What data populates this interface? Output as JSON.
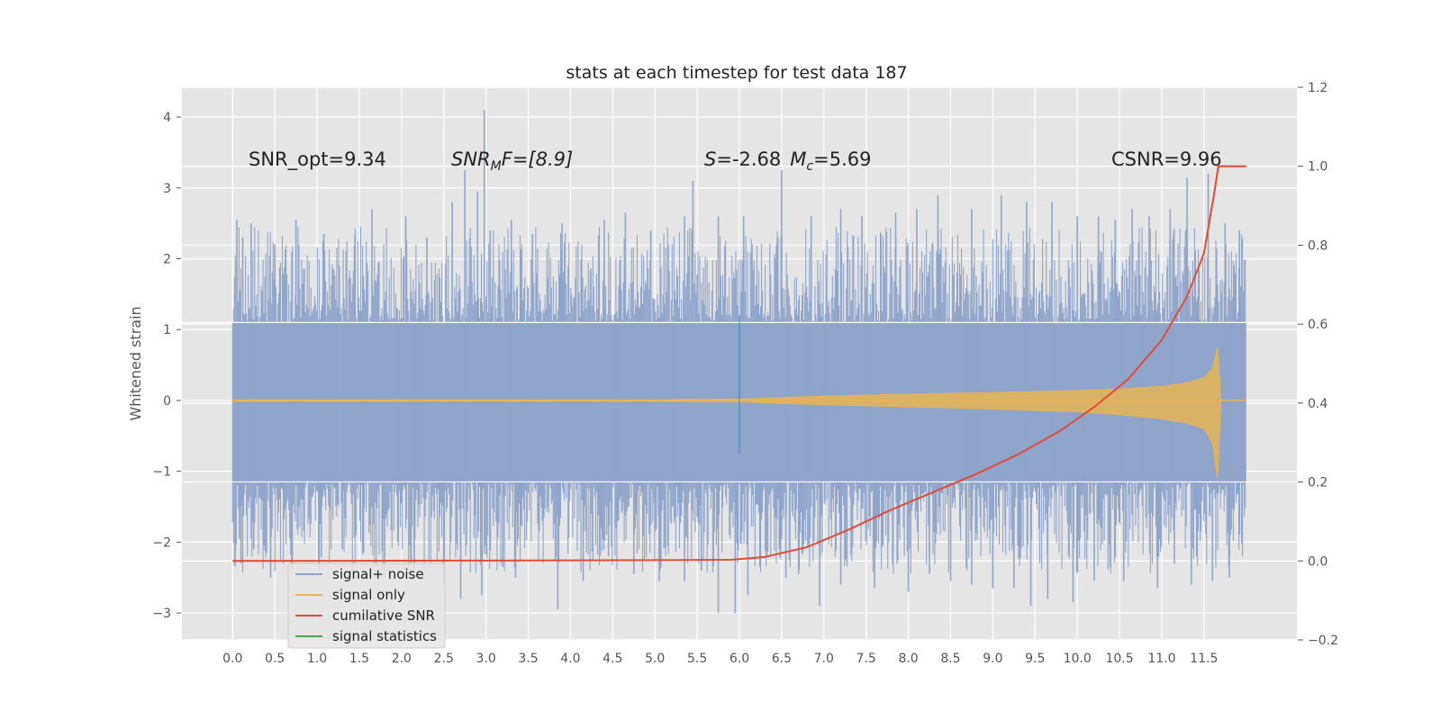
{
  "chart_data": {
    "type": "line",
    "title": "stats at each timestep for test data 187",
    "xlabel": "",
    "ylabel": "Whitened strain",
    "xlim": [
      -0.6,
      12.6
    ],
    "ylim": [
      -3.38,
      4.42
    ],
    "y2lim": [
      -0.2,
      1.2
    ],
    "grid": true,
    "x_ticks": [
      "0.0",
      "0.5",
      "1.0",
      "1.5",
      "2.0",
      "2.5",
      "3.0",
      "3.5",
      "4.0",
      "4.5",
      "5.0",
      "5.5",
      "6.0",
      "6.5",
      "7.0",
      "7.5",
      "8.0",
      "8.5",
      "9.0",
      "9.5",
      "10.0",
      "10.5",
      "11.0",
      "11.5"
    ],
    "y_ticks": [
      {
        "value": 4,
        "label": "4"
      },
      {
        "value": 3,
        "label": "3"
      },
      {
        "value": 2,
        "label": "2"
      },
      {
        "value": 1,
        "label": "1"
      },
      {
        "value": 0,
        "label": "0"
      },
      {
        "value": -1,
        "label": "−1"
      },
      {
        "value": -2,
        "label": "−2"
      },
      {
        "value": -3,
        "label": "−3"
      }
    ],
    "y2_ticks": [
      {
        "value": 1.2,
        "label": "1.2"
      },
      {
        "value": 1.0,
        "label": "1.0"
      },
      {
        "value": 0.8,
        "label": "0.8"
      },
      {
        "value": 0.6,
        "label": "0.6"
      },
      {
        "value": 0.4,
        "label": "0.4"
      },
      {
        "value": 0.2,
        "label": "0.2"
      },
      {
        "value": 0.0,
        "label": "0.0"
      },
      {
        "value": -0.2,
        "label": "−0.2"
      }
    ],
    "series": [
      {
        "name": "signal+ noise",
        "color": "#8fa5cb",
        "axis": "left",
        "x_range": [
          0,
          12
        ],
        "noise_band": [
          -1.15,
          1.1
        ],
        "spikes_up": [
          [
            0.05,
            2.55
          ],
          [
            0.12,
            2.3
          ],
          [
            0.22,
            2.5
          ],
          [
            0.5,
            2.2
          ],
          [
            0.75,
            2.55
          ],
          [
            1.08,
            2.35
          ],
          [
            1.45,
            2.35
          ],
          [
            1.65,
            2.7
          ],
          [
            2.05,
            2.6
          ],
          [
            2.3,
            2.3
          ],
          [
            2.6,
            2.8
          ],
          [
            2.75,
            3.25
          ],
          [
            2.9,
            2.95
          ],
          [
            2.98,
            4.1
          ],
          [
            3.05,
            2.4
          ],
          [
            3.3,
            2.55
          ],
          [
            3.55,
            2.35
          ],
          [
            3.9,
            2.5
          ],
          [
            4.4,
            2.55
          ],
          [
            4.65,
            2.65
          ],
          [
            4.95,
            2.4
          ],
          [
            5.35,
            2.6
          ],
          [
            5.45,
            3.1
          ],
          [
            5.75,
            2.6
          ],
          [
            6.05,
            2.6
          ],
          [
            6.5,
            3.25
          ],
          [
            6.85,
            2.6
          ],
          [
            7.2,
            2.7
          ],
          [
            7.45,
            2.6
          ],
          [
            7.85,
            2.65
          ],
          [
            8.1,
            2.7
          ],
          [
            8.35,
            2.9
          ],
          [
            8.75,
            2.7
          ],
          [
            9.1,
            2.9
          ],
          [
            9.4,
            2.8
          ],
          [
            9.7,
            2.8
          ],
          [
            10.0,
            2.6
          ],
          [
            10.25,
            2.6
          ],
          [
            10.45,
            2.55
          ],
          [
            10.65,
            2.7
          ],
          [
            10.85,
            2.6
          ],
          [
            11.1,
            2.7
          ],
          [
            11.3,
            3.15
          ],
          [
            11.55,
            3.2
          ],
          [
            11.75,
            2.5
          ],
          [
            11.92,
            2.4
          ]
        ],
        "spikes_down": [
          [
            0.08,
            -1.95
          ],
          [
            0.1,
            -2.3
          ],
          [
            0.25,
            -2.1
          ],
          [
            0.45,
            -2.5
          ],
          [
            0.7,
            -2.4
          ],
          [
            1.05,
            -2.2
          ],
          [
            1.3,
            -2.1
          ],
          [
            1.55,
            -2.15
          ],
          [
            1.8,
            -2.5
          ],
          [
            2.15,
            -2.4
          ],
          [
            2.5,
            -2.6
          ],
          [
            2.7,
            -2.8
          ],
          [
            2.95,
            -2.75
          ],
          [
            3.2,
            -2.35
          ],
          [
            3.35,
            -2.5
          ],
          [
            3.85,
            -2.95
          ],
          [
            4.15,
            -2.55
          ],
          [
            4.45,
            -2.2
          ],
          [
            4.75,
            -2.45
          ],
          [
            5.05,
            -2.55
          ],
          [
            5.35,
            -2.55
          ],
          [
            5.55,
            -2.4
          ],
          [
            5.75,
            -3.0
          ],
          [
            5.95,
            -3.0
          ],
          [
            6.1,
            -2.75
          ],
          [
            6.55,
            -2.5
          ],
          [
            6.7,
            -2.45
          ],
          [
            6.95,
            -2.9
          ],
          [
            7.2,
            -2.6
          ],
          [
            7.6,
            -2.65
          ],
          [
            8.0,
            -2.7
          ],
          [
            8.25,
            -2.45
          ],
          [
            8.5,
            -2.55
          ],
          [
            8.75,
            -2.6
          ],
          [
            9.0,
            -2.65
          ],
          [
            9.25,
            -2.65
          ],
          [
            9.45,
            -2.9
          ],
          [
            9.65,
            -2.8
          ],
          [
            9.95,
            -2.85
          ],
          [
            10.2,
            -2.55
          ],
          [
            10.55,
            -2.55
          ],
          [
            10.95,
            -2.65
          ],
          [
            11.15,
            -2.3
          ],
          [
            11.35,
            -2.6
          ],
          [
            11.6,
            -2.55
          ],
          [
            11.8,
            -2.5
          ],
          [
            11.92,
            -1.8
          ]
        ]
      },
      {
        "name": "signal only",
        "color": "#e8b454",
        "axis": "left",
        "x": [
          0,
          5.0,
          6.0,
          7.0,
          8.0,
          9.0,
          10.0,
          10.5,
          11.0,
          11.3,
          11.5,
          11.6,
          11.66,
          11.7
        ],
        "upper": [
          0.01,
          0.01,
          0.02,
          0.06,
          0.09,
          0.11,
          0.14,
          0.16,
          0.2,
          0.25,
          0.32,
          0.45,
          0.75,
          0.0
        ],
        "lower": [
          -0.01,
          -0.01,
          -0.02,
          -0.06,
          -0.09,
          -0.12,
          -0.16,
          -0.2,
          -0.26,
          -0.32,
          -0.4,
          -0.6,
          -1.1,
          0.0
        ]
      },
      {
        "name": "cumilative SNR",
        "color": "#e24a33",
        "axis": "right",
        "x": [
          0,
          3.0,
          5.0,
          5.9,
          6.3,
          6.8,
          7.3,
          7.8,
          8.3,
          8.8,
          9.3,
          9.8,
          10.2,
          10.6,
          11.0,
          11.3,
          11.5,
          11.62,
          11.67,
          11.7,
          12.0
        ],
        "y": [
          0.0,
          0.001,
          0.002,
          0.003,
          0.01,
          0.035,
          0.08,
          0.13,
          0.175,
          0.22,
          0.27,
          0.33,
          0.39,
          0.46,
          0.56,
          0.67,
          0.78,
          0.93,
          1.0,
          1.0,
          1.0
        ]
      },
      {
        "name": "signal statistics",
        "color": "#348abd",
        "axis": "left",
        "x": [
          6.0,
          6.0
        ],
        "y": [
          -0.75,
          1.2
        ]
      }
    ],
    "legend": {
      "placement": "lower-left",
      "entries": [
        {
          "label": "signal+ noise",
          "color": "#8fa5cb"
        },
        {
          "label": "signal only",
          "color": "#e8b454"
        },
        {
          "label": "cumilative SNR",
          "color": "#e24a33"
        },
        {
          "label": "signal statistics",
          "color": "#4aa34a"
        }
      ]
    },
    "annotations": [
      {
        "id": "snr_opt",
        "text": "SNR_opt=9.34"
      },
      {
        "id": "snr_mf",
        "base": "SNR",
        "sub": "M",
        "rest": "F=[8.9]"
      },
      {
        "id": "s_mc",
        "s_sym": "S",
        "s_val": "=-2.68",
        "m_sym": "M",
        "m_sub": "c",
        "m_val": "=5.69"
      },
      {
        "id": "csnr",
        "text": "CSNR=9.96"
      }
    ]
  }
}
